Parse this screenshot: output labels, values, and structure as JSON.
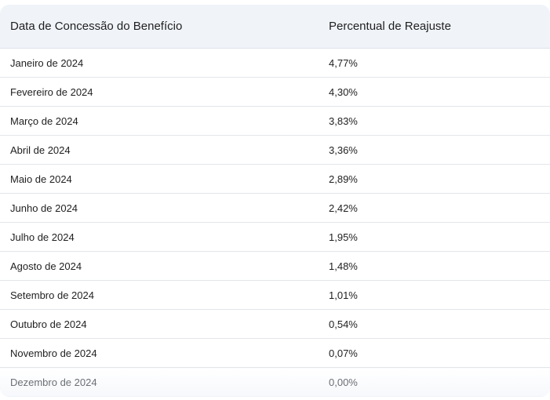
{
  "table": {
    "headers": {
      "col1": "Data de Concessão do Benefício",
      "col2": "Percentual de Reajuste"
    },
    "rows": [
      {
        "date": "Janeiro de 2024",
        "pct": "4,77%"
      },
      {
        "date": "Fevereiro de 2024",
        "pct": "4,30%"
      },
      {
        "date": "Março de 2024",
        "pct": "3,83%"
      },
      {
        "date": "Abril de 2024",
        "pct": "3,36%"
      },
      {
        "date": "Maio de 2024",
        "pct": "2,89%"
      },
      {
        "date": "Junho de 2024",
        "pct": "2,42%"
      },
      {
        "date": "Julho de 2024",
        "pct": "1,95%"
      },
      {
        "date": "Agosto de 2024",
        "pct": "1,48%"
      },
      {
        "date": "Setembro de 2024",
        "pct": "1,01%"
      },
      {
        "date": "Outubro de 2024",
        "pct": "0,54%"
      },
      {
        "date": "Novembro de 2024",
        "pct": "0,07%"
      },
      {
        "date": "Dezembro de 2024",
        "pct": "0,00%"
      }
    ]
  }
}
